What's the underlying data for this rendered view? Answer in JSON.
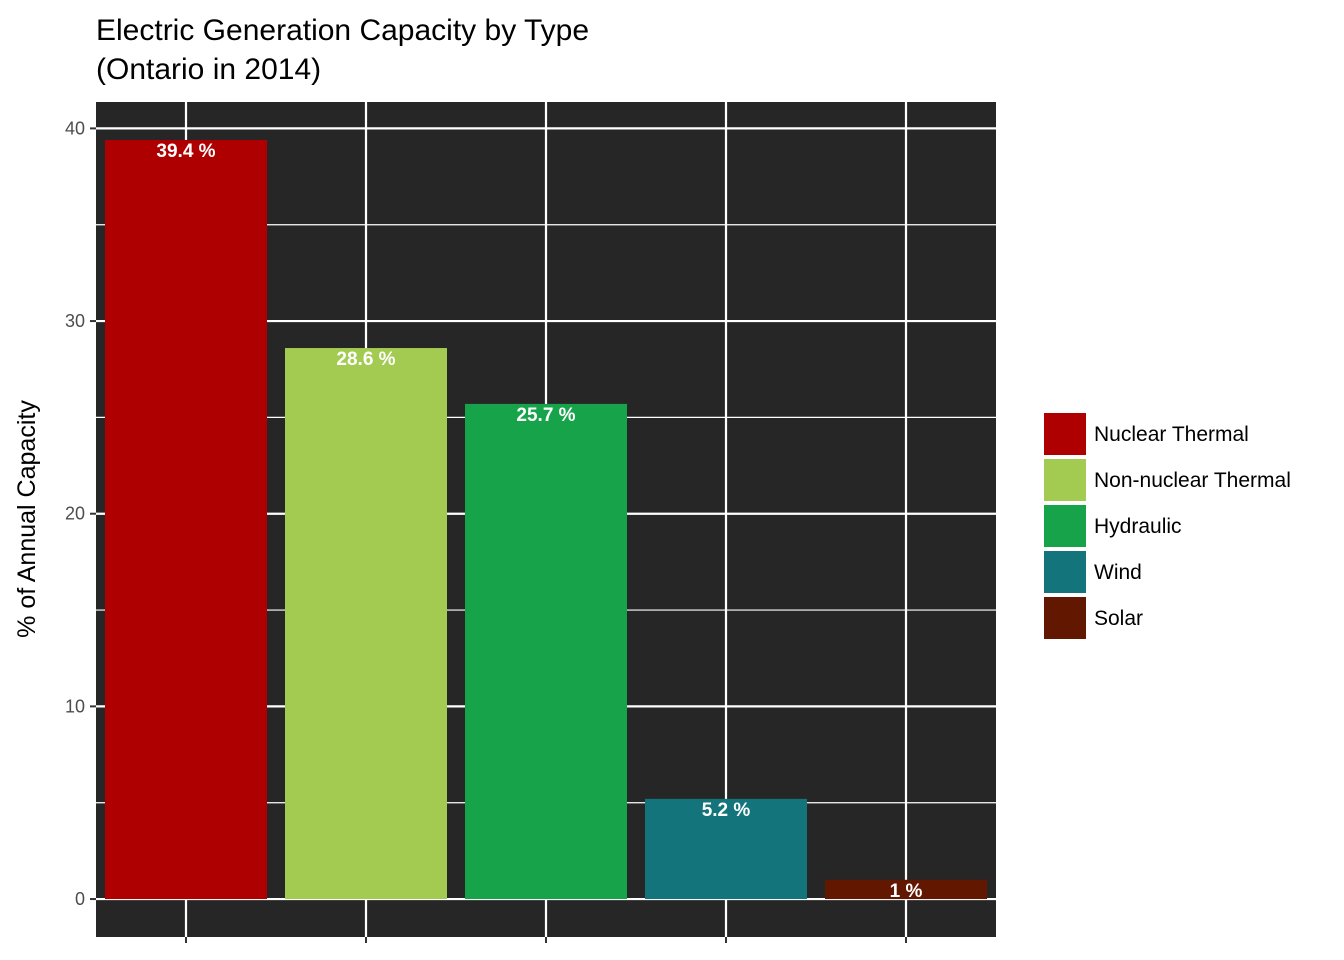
{
  "chart_data": {
    "type": "bar",
    "title": "Electric Generation Capacity by Type",
    "subtitle": "(Ontario in 2014)",
    "xlabel": "",
    "ylabel": "% of Annual Capacity",
    "categories": [
      "Nuclear Thermal",
      "Non-nuclear Thermal",
      "Hydraulic",
      "Wind",
      "Solar"
    ],
    "values": [
      39.4,
      28.6,
      25.7,
      5.2,
      1
    ],
    "data_labels": [
      "39.4 %",
      "28.6 %",
      "25.7 %",
      "5.2 %",
      "1 %"
    ],
    "colors": [
      "#AE0000",
      "#A3CB51",
      "#17A34A",
      "#14747C",
      "#621700"
    ],
    "ylim": [
      -1.97,
      41.37
    ],
    "yticks": [
      0,
      10,
      20,
      30,
      40
    ],
    "grid": true,
    "panel_background": "#262626",
    "grid_color": "#ffffff",
    "x_tick_labels_shown": false,
    "legend": {
      "position": "right",
      "entries": [
        "Nuclear Thermal",
        "Non-nuclear Thermal",
        "Hydraulic",
        "Wind",
        "Solar"
      ]
    }
  }
}
